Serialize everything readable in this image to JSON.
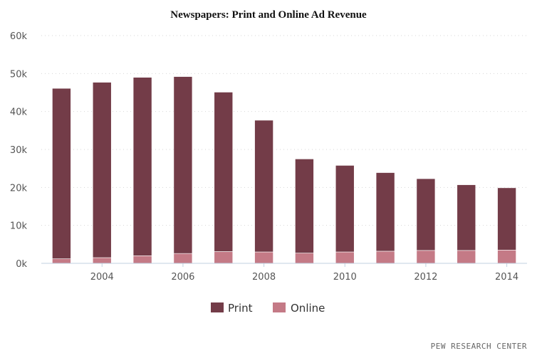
{
  "chart_data": {
    "type": "bar",
    "stacked": true,
    "title": "Newspapers: Print and Online Ad Revenue",
    "xlabel": "",
    "ylabel": "",
    "categories": [
      "2003",
      "2004",
      "2005",
      "2006",
      "2007",
      "2008",
      "2009",
      "2010",
      "2011",
      "2012",
      "2013",
      "2014"
    ],
    "x_tick_labels": [
      "2004",
      "2006",
      "2008",
      "2010",
      "2012",
      "2014"
    ],
    "y_tick_labels": [
      "0k",
      "10k",
      "20k",
      "30k",
      "40k",
      "50k",
      "60k"
    ],
    "ylim": [
      0,
      60000
    ],
    "grid": true,
    "legend_position": "bottom-center",
    "series": [
      {
        "name": "Print",
        "color": "#733c48",
        "values": [
          44900,
          46200,
          47000,
          46600,
          42000,
          34700,
          24800,
          22800,
          20700,
          18900,
          17300,
          16400
        ]
      },
      {
        "name": "Online",
        "color": "#c47a86",
        "values": [
          1200,
          1500,
          2000,
          2600,
          3100,
          3000,
          2700,
          3000,
          3200,
          3400,
          3400,
          3500
        ]
      }
    ]
  },
  "source": "PEW RESEARCH CENTER"
}
